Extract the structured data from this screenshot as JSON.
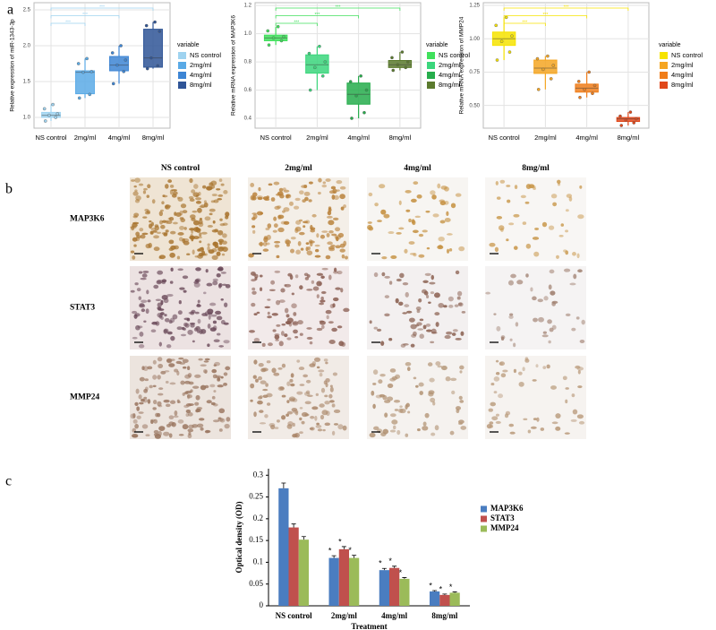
{
  "panel_labels": [
    "a",
    "b",
    "c"
  ],
  "chart_data": [
    {
      "type": "box",
      "ylabel": "Relative expression of miR-1343-3p",
      "legend_title": "variable",
      "categories": [
        "NS control",
        "2mg/ml",
        "4mg/ml",
        "8mg/ml"
      ],
      "colors": [
        "#9fd3f0",
        "#5aaae6",
        "#3d85d4",
        "#2f5597"
      ],
      "boxes": [
        {
          "whisker_low": 0.95,
          "q1": 1.0,
          "median": 1.03,
          "q3": 1.07,
          "whisker_high": 1.18,
          "points": [
            0.95,
            1.0,
            1.03,
            1.05,
            1.12,
            1.18
          ]
        },
        {
          "whisker_low": 1.27,
          "q1": 1.33,
          "median": 1.63,
          "q3": 1.65,
          "whisker_high": 1.82,
          "points": [
            1.27,
            1.32,
            1.63,
            1.64,
            1.75,
            1.82
          ]
        },
        {
          "whisker_low": 1.47,
          "q1": 1.65,
          "median": 1.73,
          "q3": 1.85,
          "whisker_high": 2.0,
          "points": [
            1.47,
            1.64,
            1.73,
            1.8,
            1.9,
            2.0
          ]
        },
        {
          "whisker_low": 1.68,
          "q1": 1.7,
          "median": 1.83,
          "q3": 2.23,
          "whisker_high": 2.33,
          "points": [
            1.68,
            1.72,
            1.83,
            2.2,
            2.28,
            2.33
          ]
        }
      ],
      "significance": [
        "***",
        "***",
        "***"
      ],
      "ylim": [
        0.85,
        2.6
      ],
      "yticks": [
        {
          "value": 1,
          "label": "1.0"
        },
        {
          "value": 1.5,
          "label": "1.5"
        },
        {
          "value": 2,
          "label": "2.0"
        },
        {
          "value": 2.5,
          "label": "2.5"
        }
      ],
      "grid": true
    },
    {
      "type": "box",
      "ylabel": "Relative mRNA expression of MAP3K6",
      "legend_title": "variable",
      "categories": [
        "NS control",
        "2mg/ml",
        "4mg/ml",
        "8mg/ml"
      ],
      "colors": [
        "#40e05c",
        "#3bd67c",
        "#26ad4c",
        "#5b7a2e"
      ],
      "boxes": [
        {
          "whisker_low": 0.92,
          "q1": 0.95,
          "median": 0.97,
          "q3": 0.99,
          "whisker_high": 1.05,
          "points": [
            0.92,
            0.95,
            0.97,
            0.98,
            1.02,
            1.05
          ]
        },
        {
          "whisker_low": 0.6,
          "q1": 0.72,
          "median": 0.78,
          "q3": 0.85,
          "whisker_high": 0.91,
          "points": [
            0.6,
            0.7,
            0.76,
            0.8,
            0.86,
            0.91
          ]
        },
        {
          "whisker_low": 0.4,
          "q1": 0.5,
          "median": 0.57,
          "q3": 0.65,
          "whisker_high": 0.7,
          "points": [
            0.4,
            0.44,
            0.56,
            0.6,
            0.66,
            0.7
          ]
        },
        {
          "whisker_low": 0.74,
          "q1": 0.76,
          "median": 0.78,
          "q3": 0.81,
          "whisker_high": 0.87,
          "points": [
            0.74,
            0.76,
            0.78,
            0.8,
            0.83,
            0.87
          ]
        }
      ],
      "significance": [
        "***",
        "***",
        "***"
      ],
      "ylim": [
        0.33,
        1.22
      ],
      "yticks": [
        0.4,
        0.6,
        0.8,
        {
          "value": 1,
          "label": "1.0"
        },
        1.2
      ],
      "grid": true
    },
    {
      "type": "box",
      "ylabel": "Relative mRNA expression of MMP24",
      "legend_title": "variable",
      "categories": [
        "NS control",
        "2mg/ml",
        "4mg/ml",
        "8mg/ml"
      ],
      "colors": [
        "#f6e300",
        "#f5a623",
        "#f07e1b",
        "#e0481b"
      ],
      "boxes": [
        {
          "whisker_low": 0.84,
          "q1": 0.95,
          "median": 1.0,
          "q3": 1.05,
          "whisker_high": 1.16,
          "points": [
            0.84,
            0.9,
            0.98,
            1.02,
            1.1,
            1.16
          ]
        },
        {
          "whisker_low": 0.62,
          "q1": 0.74,
          "median": 0.78,
          "q3": 0.84,
          "whisker_high": 0.87,
          "points": [
            0.62,
            0.7,
            0.77,
            0.8,
            0.85,
            0.87
          ]
        },
        {
          "whisker_low": 0.56,
          "q1": 0.6,
          "median": 0.63,
          "q3": 0.66,
          "whisker_high": 0.75,
          "points": [
            0.56,
            0.59,
            0.62,
            0.65,
            0.68,
            0.75
          ]
        },
        {
          "whisker_low": 0.35,
          "q1": 0.38,
          "median": 0.4,
          "q3": 0.41,
          "whisker_high": 0.45,
          "points": [
            0.35,
            0.37,
            0.39,
            0.4,
            0.42,
            0.45
          ]
        }
      ],
      "significance": [
        "***",
        "***",
        "***"
      ],
      "ylim": [
        0.33,
        1.27
      ],
      "yticks": [
        {
          "value": 0.5,
          "label": "0.50"
        },
        0.75,
        {
          "value": 1,
          "label": "1.00"
        },
        1.25
      ],
      "grid": true
    },
    {
      "type": "bar",
      "ylabel": "Optical density (OD)",
      "xlabel": "Treatment",
      "categories": [
        "NS control",
        "2mg/ml",
        "4mg/ml",
        "8mg/ml"
      ],
      "series": [
        {
          "name": "MAP3K6",
          "color": "#4a7dc0",
          "values": [
            0.27,
            0.11,
            0.082,
            0.033
          ],
          "errors": [
            0.012,
            0.005,
            0.004,
            0.002
          ],
          "annotations": [
            null,
            "*",
            "*",
            "*"
          ]
        },
        {
          "name": "STAT3",
          "color": "#c0504d",
          "values": [
            0.18,
            0.13,
            0.087,
            0.025
          ],
          "errors": [
            0.008,
            0.006,
            0.004,
            0.002
          ],
          "annotations": [
            null,
            "*",
            "*",
            "*"
          ]
        },
        {
          "name": "MMP24",
          "color": "#9bbb59",
          "values": [
            0.152,
            0.11,
            0.062,
            0.03
          ],
          "errors": [
            0.007,
            0.006,
            0.003,
            0.002
          ],
          "annotations": [
            null,
            "*",
            "*",
            "*"
          ]
        }
      ],
      "ylim": [
        0,
        0.315
      ],
      "yticks": [
        0,
        0.05,
        0.1,
        0.15,
        0.2,
        0.25,
        0.3
      ]
    }
  ],
  "panel_b": {
    "columns": [
      "NS  control",
      "2mg/ml",
      "4mg/ml",
      "8mg/ml"
    ],
    "rows": [
      "MAP3K6",
      "STAT3",
      "MMP24"
    ]
  }
}
